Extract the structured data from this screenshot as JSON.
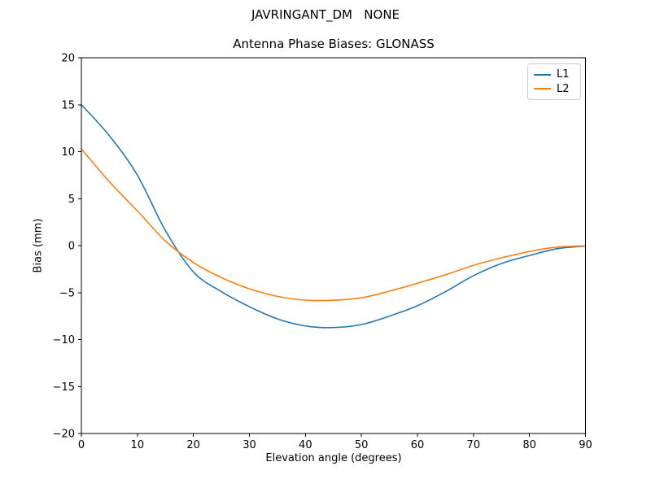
{
  "chart_data": {
    "type": "line",
    "suptitle": "JAVRINGANT_DM   NONE",
    "title": "Antenna Phase Biases: GLONASS",
    "xlabel": "Elevation angle (degrees)",
    "ylabel": "Bias (mm)",
    "xlim": [
      0,
      90
    ],
    "ylim": [
      -20,
      20
    ],
    "xticks": [
      0,
      10,
      20,
      30,
      40,
      50,
      60,
      70,
      80,
      90
    ],
    "yticks": [
      -20,
      -15,
      -10,
      -5,
      0,
      5,
      10,
      15,
      20
    ],
    "grid": false,
    "legend_position": "upper right",
    "x": [
      0,
      5,
      10,
      15,
      20,
      25,
      30,
      35,
      40,
      45,
      50,
      55,
      60,
      65,
      70,
      75,
      80,
      85,
      90
    ],
    "series": [
      {
        "name": "L1",
        "color": "#1f77b4",
        "values": [
          15.0,
          11.7,
          7.5,
          1.6,
          -2.8,
          -4.9,
          -6.5,
          -7.8,
          -8.55,
          -8.72,
          -8.4,
          -7.5,
          -6.4,
          -4.9,
          -3.2,
          -1.9,
          -1.05,
          -0.32,
          -0.05
        ]
      },
      {
        "name": "L2",
        "color": "#ff7f0e",
        "values": [
          10.3,
          6.8,
          3.7,
          0.5,
          -1.8,
          -3.4,
          -4.6,
          -5.4,
          -5.8,
          -5.82,
          -5.55,
          -4.85,
          -4.0,
          -3.1,
          -2.1,
          -1.3,
          -0.62,
          -0.15,
          -0.03
        ]
      }
    ],
    "spine_color": "#000000",
    "tick_label_color": "#000000"
  }
}
